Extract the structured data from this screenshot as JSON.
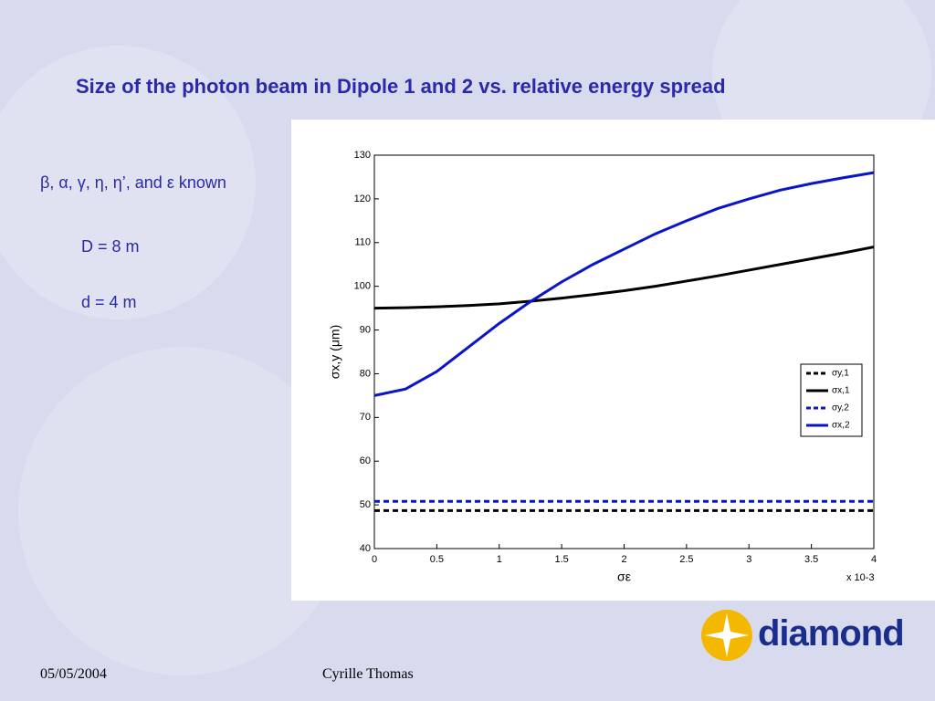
{
  "slide": {
    "title": "Size of the photon beam in Dipole 1 and 2 vs. relative energy spread",
    "known": "β, α, γ, η, η’, and ε known",
    "D": "D = 8 m",
    "d": "d = 4 m",
    "date": "05/05/2004",
    "author": "Cyrille Thomas",
    "logo": "diamond"
  },
  "chart_data": {
    "type": "line",
    "x_label": "σε",
    "x_multiplier": "x 10-3",
    "y_label": "σx,y (μm)",
    "x": [
      0,
      0.25,
      0.5,
      0.75,
      1,
      1.25,
      1.5,
      1.75,
      2,
      2.25,
      2.5,
      2.75,
      3,
      3.25,
      3.5,
      3.75,
      4
    ],
    "series": [
      {
        "name": "σy,1",
        "color": "#000000",
        "dashed": true,
        "values": [
          48.7,
          48.7,
          48.7,
          48.7,
          48.7,
          48.7,
          48.7,
          48.7,
          48.7,
          48.7,
          48.7,
          48.7,
          48.7,
          48.7,
          48.7,
          48.7,
          48.7
        ]
      },
      {
        "name": "σx,1",
        "color": "#000000",
        "dashed": false,
        "values": [
          95,
          95.1,
          95.3,
          95.6,
          96,
          96.6,
          97.3,
          98.1,
          99,
          100,
          101.2,
          102.4,
          103.7,
          105,
          106.3,
          107.6,
          109
        ]
      },
      {
        "name": "σy,2",
        "color": "#0a14c8",
        "dashed": true,
        "values": [
          50.8,
          50.8,
          50.8,
          50.8,
          50.8,
          50.8,
          50.8,
          50.8,
          50.8,
          50.8,
          50.8,
          50.8,
          50.8,
          50.8,
          50.8,
          50.8,
          50.8
        ]
      },
      {
        "name": "σx,2",
        "color": "#0a14c8",
        "dashed": false,
        "values": [
          75,
          76.5,
          80.5,
          86,
          91.5,
          96.5,
          101,
          105,
          108.5,
          112,
          115,
          117.8,
          120,
          122,
          123.5,
          124.8,
          126
        ]
      }
    ],
    "xlim": [
      0,
      4
    ],
    "xticks": [
      0,
      0.5,
      1,
      1.5,
      2,
      2.5,
      3,
      3.5,
      4
    ],
    "ylim": [
      40,
      130
    ],
    "yticks": [
      40,
      50,
      60,
      70,
      80,
      90,
      100,
      110,
      120,
      130
    ],
    "legend": "right"
  }
}
